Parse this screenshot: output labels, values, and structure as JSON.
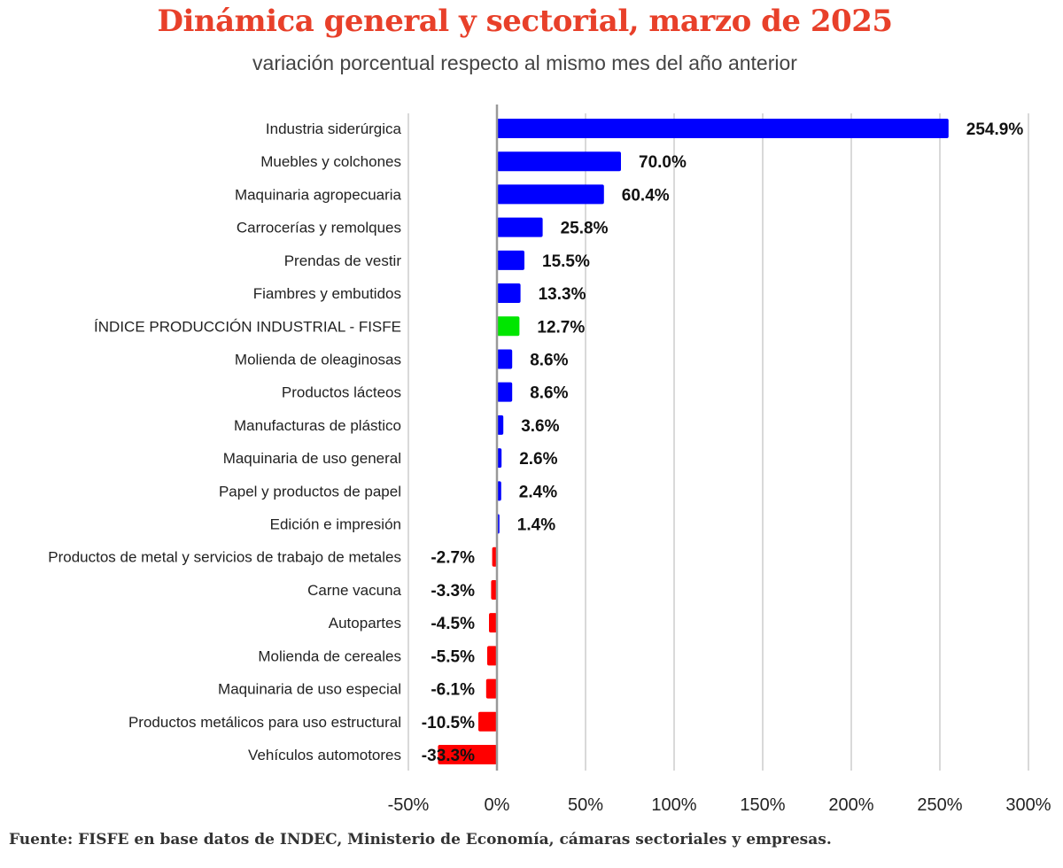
{
  "chart_data": {
    "type": "bar",
    "orientation": "horizontal",
    "title": "Dinámica general y sectorial, marzo de 2025",
    "subtitle": "variación porcentual respecto al mismo mes del  año anterior",
    "source": "Fuente: FISFE en base datos de INDEC, Ministerio de Economía, cámaras sectoriales y empresas.",
    "categories": [
      "Industria siderúrgica",
      "Muebles y colchones",
      "Maquinaria agropecuaria",
      "Carrocerías y remolques",
      "Prendas de vestir",
      "Fiambres y embutidos",
      "ÍNDICE PRODUCCIÓN INDUSTRIAL - FISFE",
      "Molienda de oleaginosas",
      "Productos lácteos",
      "Manufacturas de plástico",
      "Maquinaria de uso general",
      "Papel y productos de papel",
      "Edición e impresión",
      "Productos de metal y servicios de trabajo de metales",
      "Carne vacuna",
      "Autopartes",
      "Molienda de cereales",
      "Maquinaria de uso especial",
      "Productos metálicos para uso estructural",
      "Vehículos automotores"
    ],
    "values": [
      254.9,
      70.0,
      60.4,
      25.8,
      15.5,
      13.3,
      12.7,
      8.6,
      8.6,
      3.6,
      2.6,
      2.4,
      1.4,
      -2.7,
      -3.3,
      -4.5,
      -5.5,
      -6.1,
      -10.5,
      -33.3
    ],
    "data_labels": [
      "254.9%",
      "70.0%",
      "60.4%",
      "25.8%",
      "15.5%",
      "13.3%",
      "12.7%",
      "8.6%",
      "8.6%",
      "3.6%",
      "2.6%",
      "2.4%",
      "1.4%",
      "-2.7%",
      "-3.3%",
      "-4.5%",
      "-5.5%",
      "-6.1%",
      "-10.5%",
      "-33.3%"
    ],
    "xlim": [
      -50,
      300
    ],
    "xticks": [
      -50,
      0,
      50,
      100,
      150,
      200,
      250,
      300
    ],
    "xtick_labels": [
      "-50%",
      "0%",
      "50%",
      "100%",
      "150%",
      "200%",
      "250%",
      "300%"
    ],
    "grid": true,
    "colors": {
      "positive": "#0000ff",
      "negative": "#ff0000",
      "index": "#00e600",
      "title": "#e8402a"
    },
    "highlight_category": "ÍNDICE PRODUCCIÓN INDUSTRIAL - FISFE"
  }
}
